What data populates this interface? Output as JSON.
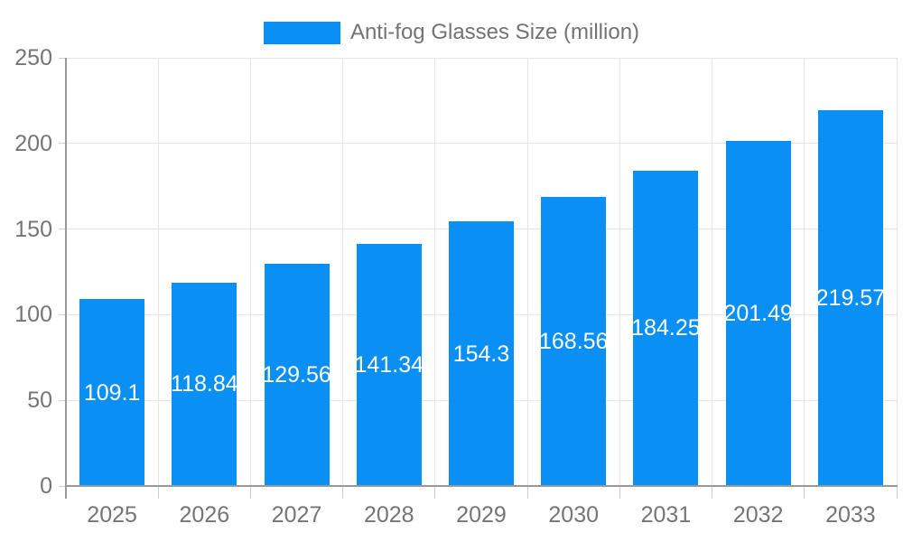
{
  "legend": {
    "label": "Anti-fog Glasses Size (million)"
  },
  "colors": {
    "bar": "#0a90f5",
    "grid": "#e6e6e6",
    "tick": "#cccccc",
    "axis": "#999999",
    "axis_label": "#757575",
    "legend_label": "#737373",
    "value_label": "#ffffff",
    "background": "#ffffff"
  },
  "chart_data": {
    "type": "bar",
    "title": "",
    "series_name": "Anti-fog Glasses Size (million)",
    "categories": [
      "2025",
      "2026",
      "2027",
      "2028",
      "2029",
      "2030",
      "2031",
      "2032",
      "2033"
    ],
    "values": [
      109.1,
      118.84,
      129.56,
      141.34,
      154.3,
      168.56,
      184.25,
      201.49,
      219.57
    ],
    "xlabel": "",
    "ylabel": "",
    "ylim": [
      0,
      250
    ],
    "yticks": [
      0,
      50,
      100,
      150,
      200,
      250
    ],
    "grid": true,
    "legend_position": "top-center",
    "value_label_position": "inside-center"
  }
}
